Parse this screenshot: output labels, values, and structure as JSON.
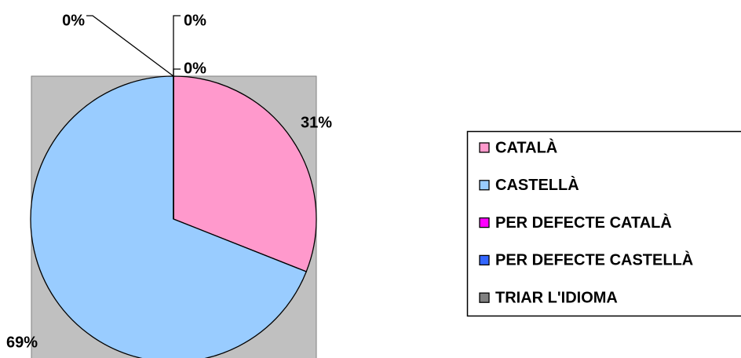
{
  "chart_data": {
    "type": "pie",
    "categories": [
      "CATALÀ",
      "CASTELLÀ",
      "PER DEFECTE CATALÀ",
      "PER DEFECTE CASTELLÀ",
      "TRIAR L'IDIOMA"
    ],
    "values": [
      31,
      69,
      0,
      0,
      0
    ],
    "value_labels": [
      "31%",
      "69%",
      "0%",
      "0%",
      "0%"
    ],
    "colors": [
      "#ff99cc",
      "#99ccff",
      "#ff00ff",
      "#3366ff",
      "#808080"
    ],
    "legend": "right"
  }
}
